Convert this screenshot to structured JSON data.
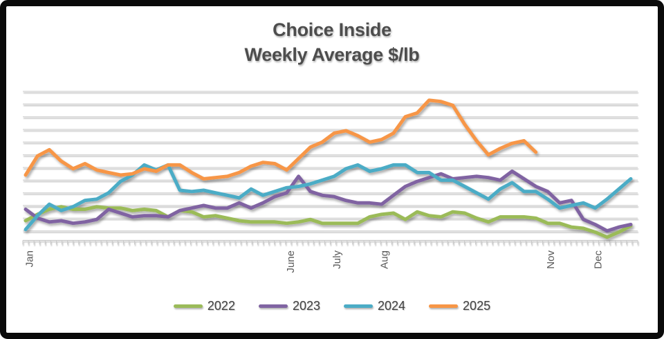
{
  "frame": {
    "border_color": "#0a0a0a",
    "background": "#ffffff"
  },
  "title": {
    "line1": "Choice Inside",
    "line2": "Weekly Average $/lb",
    "color": "#4d4d4d"
  },
  "legend": [
    {
      "label": "2022",
      "color": "#9bbb59"
    },
    {
      "label": "2023",
      "color": "#8064a2"
    },
    {
      "label": "2024",
      "color": "#4bacc6"
    },
    {
      "label": "2025",
      "color": "#f79646"
    }
  ],
  "x_axis": {
    "month_labels": [
      {
        "label": "Jan",
        "week": 0.3
      },
      {
        "label": "June",
        "week": 22.3
      },
      {
        "label": "July",
        "week": 26.2
      },
      {
        "label": "Aug",
        "week": 30.2
      },
      {
        "label": "Nov",
        "week": 44.2
      },
      {
        "label": "Dec",
        "week": 48.2
      }
    ],
    "minor_tick_count": 110
  },
  "chart_data": {
    "type": "line",
    "title": "Choice Inside Weekly Average $/lb",
    "x_unit": "week of year (weekly points, Jan through Dec, overlaid by year)",
    "y_unit": "$/lb — y-axis gridlines are unlabeled; values given in gridline units above the bottom axis",
    "ylim": [
      0,
      12
    ],
    "gridline_count": 12,
    "grid": "horizontal gridlines only, no y-axis tick labels",
    "legend_position": "bottom center",
    "series": [
      {
        "name": "2022",
        "color": "#9bbb59",
        "values": [
          1.8,
          2.3,
          2.7,
          2.9,
          2.7,
          2.7,
          2.9,
          2.8,
          2.8,
          2.6,
          2.7,
          2.6,
          2.1,
          2.6,
          2.5,
          2.1,
          2.2,
          2.0,
          1.8,
          1.7,
          1.7,
          1.7,
          1.6,
          1.7,
          1.9,
          1.6,
          1.6,
          1.6,
          1.6,
          2.1,
          2.3,
          2.4,
          1.9,
          2.5,
          2.2,
          2.1,
          2.5,
          2.4,
          2.0,
          1.7,
          2.1,
          2.1,
          2.1,
          2.0,
          1.6,
          1.6,
          1.3,
          1.2,
          0.9,
          0.5,
          0.9,
          1.4
        ]
      },
      {
        "name": "2023",
        "color": "#8064a2",
        "values": [
          2.7,
          2.0,
          1.7,
          1.8,
          1.6,
          1.7,
          1.9,
          2.7,
          2.4,
          2.1,
          2.2,
          2.2,
          2.1,
          2.6,
          2.8,
          3.0,
          2.8,
          2.8,
          3.2,
          2.8,
          3.2,
          3.7,
          4.0,
          5.3,
          4.1,
          3.8,
          3.7,
          3.4,
          3.2,
          3.2,
          3.1,
          3.8,
          4.5,
          4.9,
          5.2,
          5.5,
          5.1,
          5.2,
          5.3,
          5.2,
          5.0,
          5.7,
          5.1,
          4.5,
          4.1,
          3.2,
          3.4,
          1.9,
          1.5,
          1.0,
          1.3,
          1.5
        ]
      },
      {
        "name": "2024",
        "color": "#4bacc6",
        "values": [
          1.1,
          2.2,
          3.1,
          2.6,
          2.9,
          3.4,
          3.5,
          4.0,
          4.9,
          5.4,
          6.2,
          5.8,
          6.2,
          4.2,
          4.1,
          4.2,
          4.0,
          3.8,
          3.6,
          4.3,
          3.8,
          4.1,
          4.4,
          4.5,
          4.7,
          5.0,
          5.3,
          5.9,
          6.2,
          5.7,
          5.9,
          6.2,
          6.2,
          5.6,
          5.6,
          5.0,
          5.0,
          4.5,
          4.0,
          3.5,
          4.3,
          4.8,
          4.1,
          4.1,
          3.5,
          2.8,
          3.0,
          3.2,
          2.8,
          3.5,
          4.3,
          5.1
        ]
      },
      {
        "name": "2025",
        "color": "#f79646",
        "values": [
          5.4,
          6.9,
          7.4,
          6.5,
          5.9,
          6.3,
          5.8,
          5.6,
          5.4,
          5.5,
          5.9,
          5.7,
          6.2,
          6.2,
          5.6,
          5.1,
          5.2,
          5.3,
          5.6,
          6.1,
          6.4,
          6.3,
          5.8,
          6.7,
          7.6,
          8.0,
          8.7,
          8.9,
          8.5,
          8.0,
          8.2,
          8.7,
          10.0,
          10.3,
          11.3,
          11.2,
          10.9,
          9.4,
          8.1,
          7.0,
          7.5,
          7.9,
          8.1,
          7.2
        ]
      }
    ]
  }
}
